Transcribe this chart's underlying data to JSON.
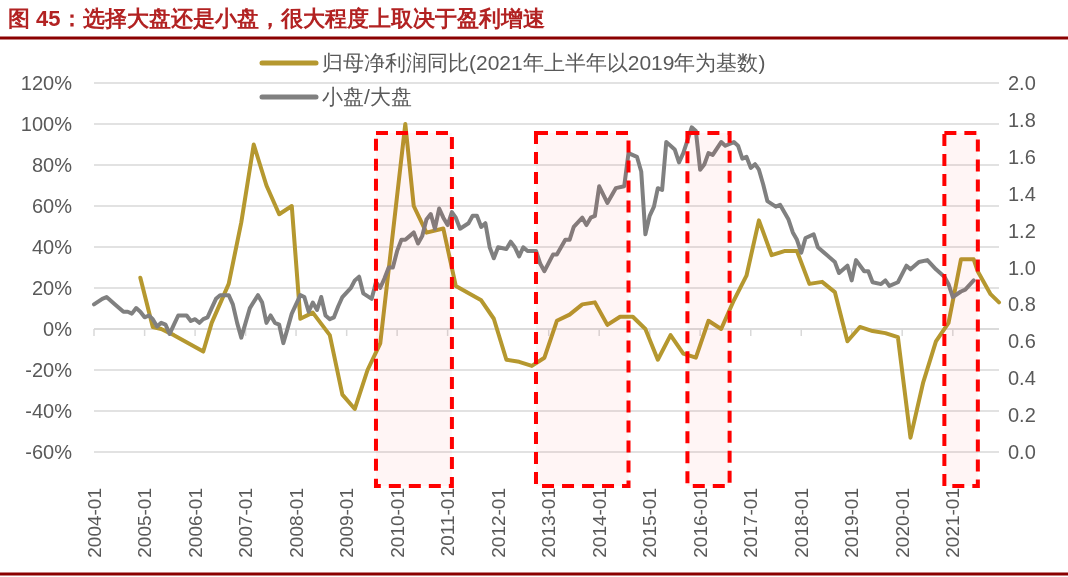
{
  "chart_data": {
    "type": "line",
    "title": "图 45：选择大盘还是小盘，很大程度上取决于盈利增速",
    "xlim": [
      "2004-01",
      "2021-12"
    ],
    "xticks": [
      "2004-01",
      "2005-01",
      "2006-01",
      "2007-01",
      "2008-01",
      "2009-01",
      "2010-01",
      "2011-01",
      "2012-01",
      "2013-01",
      "2014-01",
      "2015-01",
      "2016-01",
      "2017-01",
      "2018-01",
      "2019-01",
      "2020-01",
      "2021-01"
    ],
    "ylim": [
      -60,
      120
    ],
    "yticks": [
      {
        "value": -60,
        "label": "-60%"
      },
      {
        "value": -40,
        "label": "-40%"
      },
      {
        "value": -20,
        "label": "-20%"
      },
      {
        "value": 0,
        "label": "0%"
      },
      {
        "value": 20,
        "label": "20%"
      },
      {
        "value": 40,
        "label": "40%"
      },
      {
        "value": 60,
        "label": "60%"
      },
      {
        "value": 80,
        "label": "80%"
      },
      {
        "value": 100,
        "label": "100%"
      },
      {
        "value": 120,
        "label": "120%"
      }
    ],
    "y2lim": [
      0,
      2
    ],
    "y2ticks": [
      {
        "value": 0,
        "label": "0.0"
      },
      {
        "value": 0.2,
        "label": "0.2"
      },
      {
        "value": 0.4,
        "label": "0.4"
      },
      {
        "value": 0.6,
        "label": "0.6"
      },
      {
        "value": 0.8,
        "label": "0.8"
      },
      {
        "value": 1,
        "label": "1.0"
      },
      {
        "value": 1.2,
        "label": "1.2"
      },
      {
        "value": 1.4,
        "label": "1.4"
      },
      {
        "value": 1.6,
        "label": "1.6"
      },
      {
        "value": 1.8,
        "label": "1.8"
      },
      {
        "value": 2,
        "label": "2.0"
      }
    ],
    "grid": "y",
    "legend": "top",
    "series": [
      {
        "name": "归母净利润同比(2021年上半年以2019年为基数)",
        "color": "#b5982f",
        "x": [
          "2004-12",
          "2005-03",
          "2005-05",
          "2005-08",
          "2006-03",
          "2006-05",
          "2006-09",
          "2006-12",
          "2007-03",
          "2007-06",
          "2007-09",
          "2007-12",
          "2008-02",
          "2008-05",
          "2008-09",
          "2008-12",
          "2009-03",
          "2009-06",
          "2009-09",
          "2010-03",
          "2010-05",
          "2010-08",
          "2010-12",
          "2011-03",
          "2011-09",
          "2011-12",
          "2012-03",
          "2012-06",
          "2012-09",
          "2012-12",
          "2013-03",
          "2013-06",
          "2013-09",
          "2013-12",
          "2014-03",
          "2014-06",
          "2014-09",
          "2014-12",
          "2015-03",
          "2015-06",
          "2015-09",
          "2015-12",
          "2016-03",
          "2016-06",
          "2016-09",
          "2016-12",
          "2017-03",
          "2017-06",
          "2017-09",
          "2017-12",
          "2018-03",
          "2018-06",
          "2018-09",
          "2018-12",
          "2019-03",
          "2019-06",
          "2019-09",
          "2019-12",
          "2020-03",
          "2020-06",
          "2020-09",
          "2020-12",
          "2021-03",
          "2021-06",
          "2021-07",
          "2021-10",
          "2021-12"
        ],
        "values": [
          25,
          1,
          0,
          -3,
          -11,
          3,
          22,
          52,
          90,
          70,
          56,
          60,
          5,
          8,
          -3,
          -32,
          -39,
          -20,
          -7,
          100,
          60,
          47,
          49,
          21,
          14,
          5,
          -15,
          -16,
          -18,
          -14,
          4,
          7,
          12,
          13,
          2,
          6,
          6,
          0,
          -15,
          -3,
          -12,
          -14,
          4,
          0,
          14,
          26,
          53,
          36,
          38,
          38,
          22,
          23,
          18,
          -6,
          1,
          -1,
          -2,
          -4,
          -53,
          -26,
          -6,
          3,
          34,
          34,
          28,
          17,
          13
        ]
      },
      {
        "name": "小盘/大盘",
        "color": "#808080",
        "axis": "y2",
        "x": [
          "2004-01",
          "2004-03",
          "2004-04",
          "2004-06",
          "2004-08",
          "2004-09",
          "2004-10",
          "2004-11",
          "2004-12",
          "2005-01",
          "2005-02",
          "2005-03",
          "2005-04",
          "2005-05",
          "2005-06",
          "2005-07",
          "2005-08",
          "2005-09",
          "2005-10",
          "2005-11",
          "2005-12",
          "2006-01",
          "2006-02",
          "2006-03",
          "2006-04",
          "2006-05",
          "2006-06",
          "2006-07",
          "2006-09",
          "2006-10",
          "2006-11",
          "2006-12",
          "2007-01",
          "2007-02",
          "2007-04",
          "2007-05",
          "2007-06",
          "2007-07",
          "2007-08",
          "2007-09",
          "2007-10",
          "2007-11",
          "2007-12",
          "2008-02",
          "2008-03",
          "2008-04",
          "2008-05",
          "2008-06",
          "2008-07",
          "2008-08",
          "2008-09",
          "2008-10",
          "2008-11",
          "2008-12",
          "2009-02",
          "2009-03",
          "2009-04",
          "2009-05",
          "2009-07",
          "2009-08",
          "2009-09",
          "2009-10",
          "2009-11",
          "2009-12",
          "2010-01",
          "2010-02",
          "2010-03",
          "2010-04",
          "2010-05",
          "2010-06",
          "2010-07",
          "2010-08",
          "2010-09",
          "2010-10",
          "2010-11",
          "2010-12",
          "2011-01",
          "2011-02",
          "2011-03",
          "2011-04",
          "2011-06",
          "2011-07",
          "2011-08",
          "2011-09",
          "2011-10",
          "2011-11",
          "2011-12",
          "2012-01",
          "2012-03",
          "2012-04",
          "2012-05",
          "2012-06",
          "2012-07",
          "2012-08",
          "2012-10",
          "2012-11",
          "2012-12",
          "2013-02",
          "2013-03",
          "2013-05",
          "2013-06",
          "2013-07",
          "2013-09",
          "2013-10",
          "2013-11",
          "2013-12",
          "2014-01",
          "2014-03",
          "2014-05",
          "2014-07",
          "2014-08",
          "2014-10",
          "2014-11",
          "2014-12",
          "2015-01",
          "2015-02",
          "2015-03",
          "2015-04",
          "2015-05",
          "2015-06",
          "2015-07",
          "2015-08",
          "2015-09",
          "2015-11",
          "2015-12",
          "2016-01",
          "2016-02",
          "2016-03",
          "2016-04",
          "2016-06",
          "2016-07",
          "2016-09",
          "2016-10",
          "2016-11",
          "2016-12",
          "2017-01",
          "2017-02",
          "2017-03",
          "2017-04",
          "2017-05",
          "2017-07",
          "2017-08",
          "2017-10",
          "2017-11",
          "2017-12",
          "2018-01",
          "2018-02",
          "2018-04",
          "2018-05",
          "2018-07",
          "2018-09",
          "2018-10",
          "2018-12",
          "2019-01",
          "2019-02",
          "2019-04",
          "2019-05",
          "2019-06",
          "2019-08",
          "2019-09",
          "2019-10",
          "2019-12",
          "2020-02",
          "2020-03",
          "2020-05",
          "2020-07",
          "2020-09",
          "2020-11",
          "2020-12",
          "2021-01",
          "2021-03",
          "2021-04",
          "2021-06"
        ],
        "values": [
          0.8,
          0.83,
          0.84,
          0.8,
          0.76,
          0.76,
          0.75,
          0.78,
          0.76,
          0.73,
          0.74,
          0.72,
          0.68,
          0.7,
          0.69,
          0.64,
          0.69,
          0.74,
          0.74,
          0.74,
          0.71,
          0.72,
          0.7,
          0.72,
          0.73,
          0.78,
          0.83,
          0.85,
          0.85,
          0.8,
          0.7,
          0.62,
          0.7,
          0.78,
          0.85,
          0.81,
          0.7,
          0.74,
          0.7,
          0.69,
          0.59,
          0.67,
          0.75,
          0.85,
          0.84,
          0.76,
          0.81,
          0.77,
          0.84,
          0.74,
          0.72,
          0.73,
          0.79,
          0.84,
          0.89,
          0.93,
          0.95,
          0.86,
          0.83,
          0.92,
          0.89,
          0.94,
          1.0,
          1.0,
          1.09,
          1.15,
          1.15,
          1.17,
          1.19,
          1.13,
          1.17,
          1.26,
          1.29,
          1.21,
          1.32,
          1.27,
          1.23,
          1.3,
          1.27,
          1.21,
          1.24,
          1.28,
          1.28,
          1.22,
          1.24,
          1.11,
          1.05,
          1.11,
          1.1,
          1.14,
          1.11,
          1.06,
          1.11,
          1.09,
          1.09,
          1.02,
          0.98,
          1.07,
          1.07,
          1.15,
          1.15,
          1.22,
          1.27,
          1.23,
          1.27,
          1.28,
          1.44,
          1.35,
          1.43,
          1.44,
          1.62,
          1.6,
          1.52,
          1.18,
          1.28,
          1.33,
          1.43,
          1.42,
          1.68,
          1.66,
          1.64,
          1.57,
          1.62,
          1.76,
          1.74,
          1.53,
          1.56,
          1.62,
          1.61,
          1.68,
          1.66,
          1.68,
          1.66,
          1.59,
          1.6,
          1.54,
          1.56,
          1.53,
          1.45,
          1.36,
          1.33,
          1.34,
          1.26,
          1.19,
          1.15,
          1.08,
          1.16,
          1.18,
          1.11,
          1.07,
          1.03,
          0.97,
          1.01,
          0.93,
          1.04,
          0.98,
          0.98,
          0.92,
          0.91,
          0.93,
          0.9,
          0.92,
          1.01,
          0.99,
          1.03,
          1.04,
          0.99,
          0.95,
          0.91,
          0.84,
          0.87,
          0.88,
          0.93
        ]
      }
    ],
    "bands": [
      {
        "axis": "x",
        "from": "2009-08",
        "to": "2011-02",
        "color": "#ff0000"
      },
      {
        "axis": "x",
        "from": "2012-10",
        "to": "2014-08",
        "color": "#ff0000"
      },
      {
        "axis": "x",
        "from": "2015-10",
        "to": "2016-08",
        "color": "#ff0000"
      },
      {
        "axis": "x",
        "from": "2020-11",
        "to": "2021-07",
        "color": "#ff0000"
      }
    ]
  }
}
